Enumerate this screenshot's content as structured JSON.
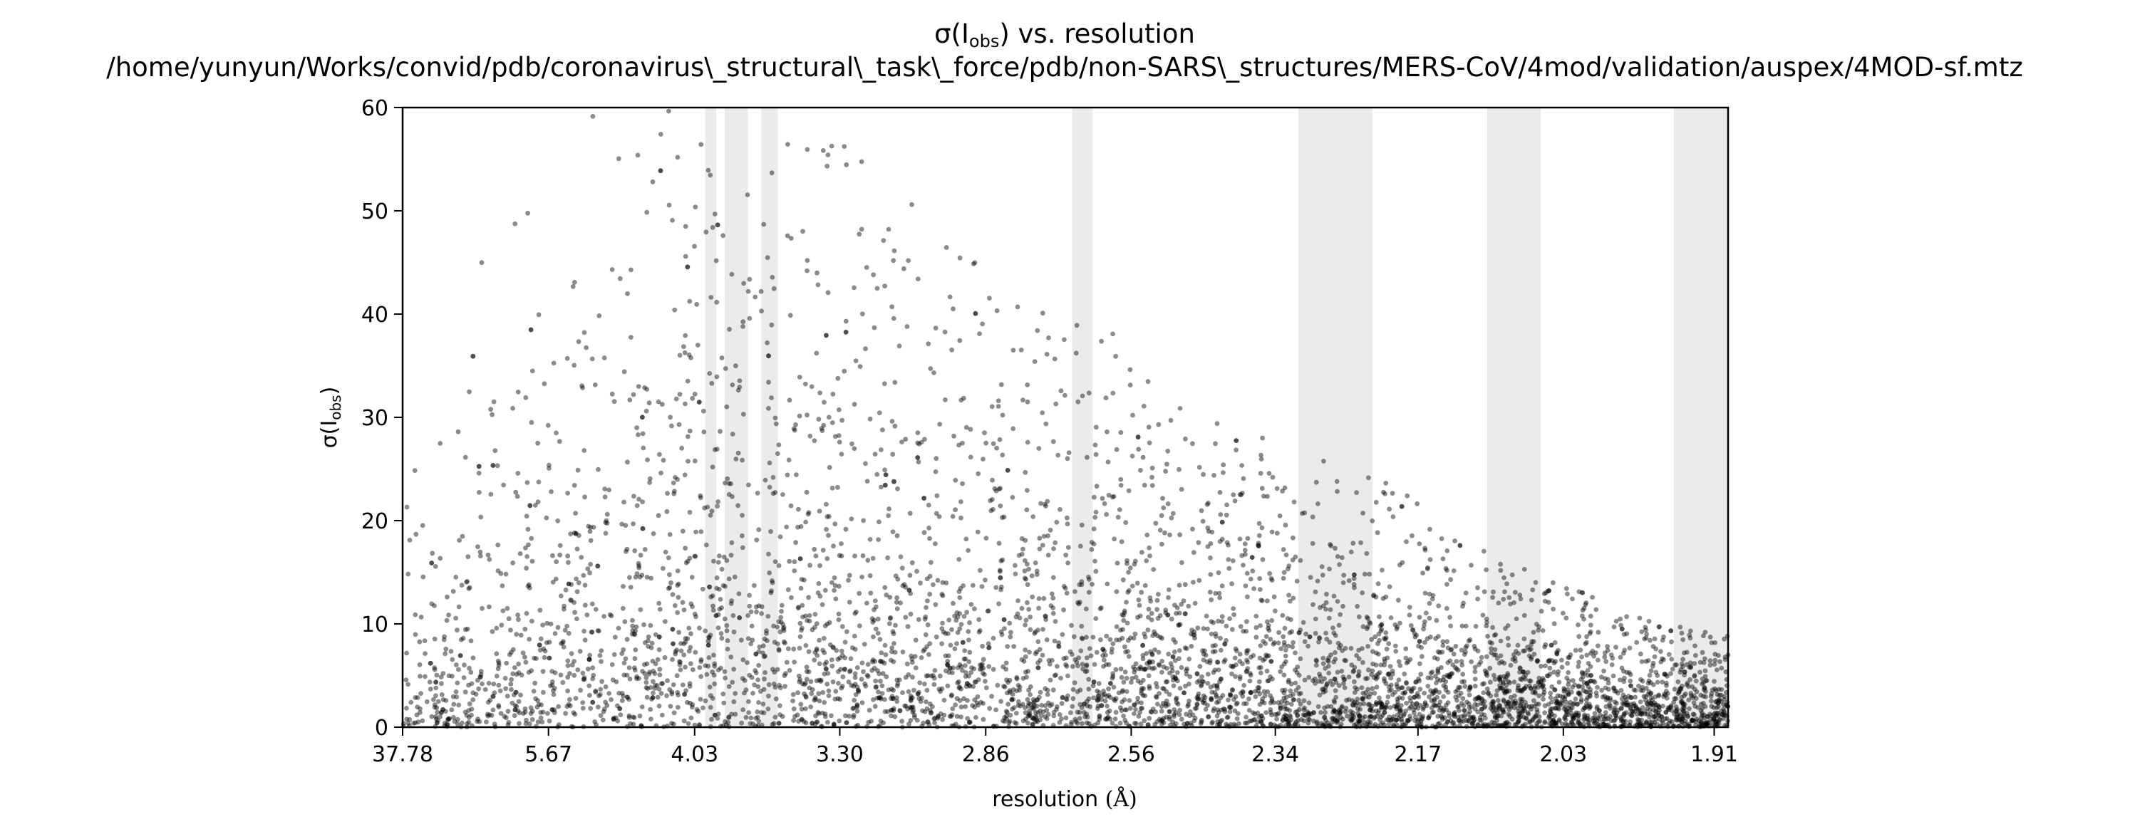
{
  "chart_data": {
    "type": "scatter",
    "title": "σ(I_obs) vs. resolution",
    "title_main": "σ(I",
    "title_sub": "obs",
    "title_rest": ") vs. resolution",
    "subtitle": "/home/yunyun/Works/convid/pdb/coronavirus\\_structural\\_task\\_force/pdb/non-SARS\\_structures/MERS-CoV/4mod/validation/auspex/4MOD-sf.mtz",
    "xlabel": "resolution (Å)",
    "xlabel_main": "resolution ",
    "xlabel_unit": "(Å)",
    "ylabel": "σ(I_obs)",
    "ylabel_main": "σ(I",
    "ylabel_sub": "obs",
    "ylabel_rest": ")",
    "x_scale": "1/d²",
    "xlim": [
      37.78,
      1.9
    ],
    "ylim": [
      0,
      60
    ],
    "x_ticks": [
      "37.78",
      "5.67",
      "4.03",
      "3.30",
      "2.86",
      "2.56",
      "2.34",
      "2.17",
      "2.03",
      "1.91"
    ],
    "y_ticks": [
      0,
      10,
      20,
      30,
      40,
      50,
      60
    ],
    "grid": false,
    "point_color": "#000000",
    "point_opacity": 0.45,
    "band_color": "#ebebeb",
    "excluded_resolution_bands": [
      [
        3.96,
        3.89
      ],
      [
        3.84,
        3.71
      ],
      [
        3.64,
        3.56
      ],
      [
        2.67,
        2.63
      ],
      [
        2.31,
        2.22
      ],
      [
        2.1,
        2.05
      ],
      [
        1.94,
        1.93
      ],
      [
        1.93,
        1.9
      ]
    ],
    "series": [
      {
        "values_description": "",
        "envelope": [
          [
            37.78,
            25
          ],
          [
            8.0,
            45
          ],
          [
            6.0,
            55
          ],
          [
            5.0,
            60
          ],
          [
            4.5,
            60
          ],
          [
            4.03,
            60
          ],
          [
            3.5,
            58
          ],
          [
            3.3,
            57
          ],
          [
            3.0,
            52
          ],
          [
            2.86,
            45
          ],
          [
            2.7,
            40
          ],
          [
            2.56,
            38
          ],
          [
            2.45,
            30
          ],
          [
            2.34,
            28
          ],
          [
            2.25,
            26
          ],
          [
            2.17,
            22
          ],
          [
            2.1,
            17
          ],
          [
            2.03,
            14
          ],
          [
            1.97,
            11
          ],
          [
            1.91,
            9
          ]
        ],
        "density_peak": [
          [
            37.78,
            3
          ],
          [
            5.67,
            6
          ],
          [
            4.03,
            9
          ],
          [
            3.3,
            8
          ],
          [
            2.86,
            6
          ],
          [
            2.56,
            5
          ],
          [
            2.34,
            4
          ],
          [
            2.17,
            3
          ],
          [
            2.03,
            2.5
          ],
          [
            1.91,
            2
          ]
        ]
      }
    ]
  }
}
